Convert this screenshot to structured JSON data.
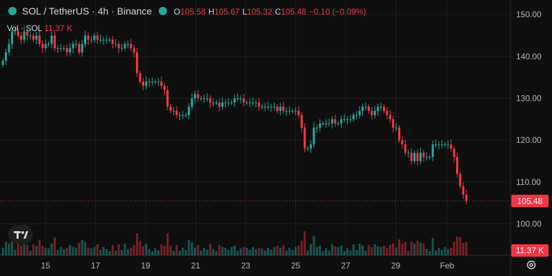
{
  "header": {
    "symbol": "SOL / TetherUS · 4h · Binance",
    "o_label": "O",
    "o_value": "105.58",
    "h_label": "H",
    "h_value": "105.67",
    "l_label": "L",
    "l_value": "105.32",
    "c_label": "C",
    "c_value": "105.48",
    "change": "−0.10 (−0.09%)"
  },
  "volume_legend": {
    "label": "Vol · SOL",
    "value": "11.37 K"
  },
  "colors": {
    "up": "#26a69a",
    "down": "#f23645",
    "background": "#0f0f0f",
    "grid": "#1f1f1f"
  },
  "icons": {
    "logo": "tradingview-logo-icon",
    "settings": "gear-icon",
    "symbol": "sol-coin-icon"
  },
  "chart_data": {
    "type": "candlestick",
    "y_ticks": [
      "150.00",
      "140.00",
      "130.00",
      "120.00",
      "110.00",
      "100.00"
    ],
    "ylim": [
      92.5,
      153.5
    ],
    "x_ticks": [
      "15",
      "17",
      "19",
      "21",
      "23",
      "25",
      "27",
      "29",
      "Feb"
    ],
    "last_price_label": "105.48",
    "last_price": 105.48,
    "volume_label": "11.37 K",
    "grid": true,
    "series": [
      {
        "name": "price",
        "closes": [
          139,
          141,
          143,
          146,
          146,
          145,
          144,
          146,
          145,
          145,
          144,
          145,
          143,
          142,
          143,
          143,
          145,
          142,
          142,
          142,
          142,
          141,
          142,
          143,
          143,
          141,
          143,
          145,
          144,
          144,
          145,
          144,
          144,
          144,
          144,
          144,
          143,
          143,
          142,
          142,
          143,
          143,
          142,
          141,
          136,
          134,
          133,
          134,
          134,
          134,
          134,
          134,
          133,
          132,
          128,
          127,
          127,
          126,
          126,
          126,
          126,
          128,
          130,
          131,
          130,
          130,
          130,
          130,
          129,
          129,
          129,
          128,
          129,
          129,
          129,
          129,
          130,
          130,
          130,
          129,
          129,
          129,
          129,
          129,
          128,
          128,
          128,
          128,
          128,
          128,
          127,
          128,
          127,
          127,
          127,
          127,
          127,
          126,
          123,
          118,
          118,
          119,
          123,
          123,
          124,
          124,
          124,
          124,
          125,
          124,
          124,
          125,
          125,
          125,
          125,
          126,
          126,
          127,
          128,
          128,
          127,
          126,
          127,
          128,
          128,
          127,
          126,
          125,
          123,
          123,
          120,
          119,
          117,
          117,
          115,
          117,
          115,
          117,
          116,
          116,
          116,
          119,
          119,
          119,
          119,
          119,
          119,
          118,
          116,
          112,
          109,
          107,
          105.48
        ]
      }
    ]
  }
}
